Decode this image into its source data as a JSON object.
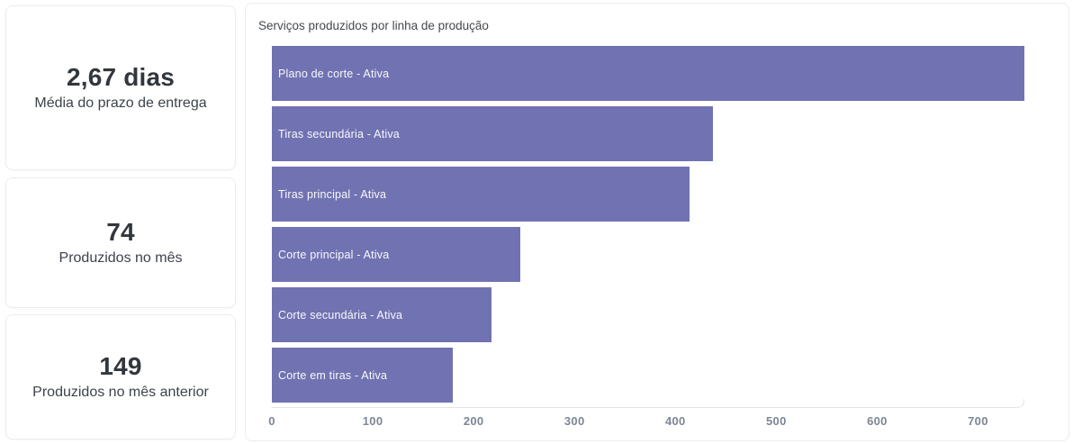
{
  "kpis": [
    {
      "value": "2,67 dias",
      "label": "Média do prazo de entrega"
    },
    {
      "value": "74",
      "label": "Produzidos no mês"
    },
    {
      "value": "149",
      "label": "Produzidos no mês anterior"
    }
  ],
  "chart_data": {
    "type": "bar",
    "orientation": "horizontal",
    "title": "Serviços produzidos por linha de produção",
    "categories": [
      "Plano de corte - Ativa",
      "Tiras secundária - Ativa",
      "Tiras principal - Ativa",
      "Corte principal - Ativa",
      "Corte secundária - Ativa",
      "Corte em tiras - Ativa"
    ],
    "values": [
      746,
      437,
      414,
      246,
      218,
      179
    ],
    "xlabel": "",
    "ylabel": "",
    "xlim": [
      0,
      746
    ],
    "xticks": [
      0,
      100,
      200,
      300,
      400,
      500,
      600,
      700
    ],
    "grid": false,
    "legend": false,
    "bar_color": "#7172b2",
    "bar_label_color": "#ffffff",
    "axis_tick_color": "#7d8694",
    "axis_line_color": "#e2e5e9"
  }
}
